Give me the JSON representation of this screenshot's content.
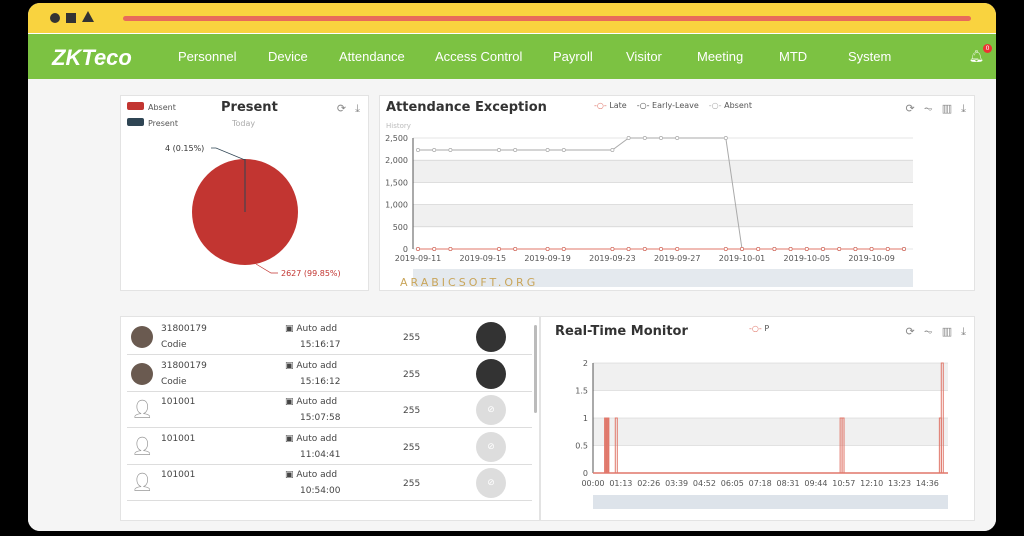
{
  "nav": {
    "logo": "ZKTeco",
    "items": [
      "Personnel",
      "Device",
      "Attendance",
      "Access Control",
      "Payroll",
      "Visitor",
      "Meeting",
      "MTD",
      "System"
    ],
    "notification_count": "0"
  },
  "present": {
    "title": "Present",
    "subtitle": "Today",
    "legend": [
      "Absent",
      "Present"
    ],
    "label_present": "4 (0.15%)",
    "label_absent": "2627 (99.85%)",
    "colors": {
      "absent": "#c23531",
      "present": "#2f4554"
    },
    "values": {
      "absent": 2627,
      "present": 4
    }
  },
  "exception": {
    "title": "Attendance Exception",
    "subtitle": "History",
    "legend": [
      "Late",
      "Early-Leave",
      "Absent"
    ]
  },
  "monitor": {
    "title": "Real-Time Monitor",
    "legend": [
      "P"
    ]
  },
  "records": [
    {
      "id": "31800179",
      "name": "Codie",
      "device": "Auto add",
      "time": "15:16:17",
      "verify": "255",
      "photo": true
    },
    {
      "id": "31800179",
      "name": "Codie",
      "device": "Auto add",
      "time": "15:16:12",
      "verify": "255",
      "photo": true
    },
    {
      "id": "101001",
      "name": "",
      "device": "Auto add",
      "time": "15:07:58",
      "verify": "255",
      "photo": false
    },
    {
      "id": "101001",
      "name": "",
      "device": "Auto add",
      "time": "11:04:41",
      "verify": "255",
      "photo": false
    },
    {
      "id": "101001",
      "name": "",
      "device": "Auto add",
      "time": "10:54:00",
      "verify": "255",
      "photo": false
    }
  ],
  "watermark": "ARABICSOFT.ORG",
  "chart_data": [
    {
      "type": "line",
      "title": "Attendance Exception",
      "subtitle": "History",
      "ylim": [
        0,
        2500
      ],
      "yticks": [
        "0",
        "500",
        "1,000",
        "1,500",
        "2,000",
        "2,500"
      ],
      "xticks": [
        "2019-09-11",
        "2019-09-15",
        "2019-09-19",
        "2019-09-23",
        "2019-09-27",
        "2019-10-01",
        "2019-10-05",
        "2019-10-09"
      ],
      "x": [
        "09-11",
        "09-12",
        "09-13",
        "09-16",
        "09-17",
        "09-19",
        "09-20",
        "09-23",
        "09-24",
        "09-25",
        "09-26",
        "09-27",
        "09-30",
        "10-01",
        "10-02",
        "10-03",
        "10-04",
        "10-05",
        "10-06",
        "10-07",
        "10-08",
        "10-09",
        "10-10",
        "10-11"
      ],
      "series": [
        {
          "name": "Late",
          "color": "#e0776a",
          "values": [
            0,
            0,
            0,
            0,
            0,
            0,
            0,
            0,
            0,
            0,
            0,
            0,
            0,
            0,
            0,
            0,
            0,
            0,
            0,
            0,
            0,
            0,
            0,
            0
          ]
        },
        {
          "name": "Early-Leave",
          "color": "#555",
          "values": [
            0,
            0,
            0,
            0,
            0,
            0,
            0,
            0,
            0,
            0,
            0,
            0,
            0,
            0,
            0,
            0,
            0,
            0,
            0,
            0,
            0,
            0,
            0,
            0
          ]
        },
        {
          "name": "Absent",
          "color": "#aaa",
          "values": [
            2230,
            2230,
            2230,
            2230,
            2230,
            2230,
            2230,
            2230,
            2500,
            2500,
            2500,
            2500,
            2500,
            0,
            0,
            0,
            0,
            0,
            0,
            0,
            0,
            0,
            0,
            0
          ]
        }
      ]
    },
    {
      "type": "line",
      "title": "Real-Time Monitor",
      "ylim": [
        0,
        2
      ],
      "yticks": [
        "0",
        "0.5",
        "1",
        "1.5",
        "2"
      ],
      "xticks": [
        "00:00",
        "01:13",
        "02:26",
        "03:39",
        "04:52",
        "06:05",
        "07:18",
        "08:31",
        "09:44",
        "10:57",
        "12:10",
        "13:23",
        "14:36"
      ],
      "series": [
        {
          "name": "P",
          "color": "#e0776a",
          "spikes": [
            [
              "00:33",
              1
            ],
            [
              "00:35",
              1
            ],
            [
              "00:37",
              1
            ],
            [
              "00:39",
              1
            ],
            [
              "01:01",
              1
            ],
            [
              "10:50",
              1
            ],
            [
              "10:55",
              1
            ],
            [
              "15:10",
              1
            ],
            [
              "15:15",
              2
            ]
          ]
        }
      ]
    }
  ]
}
